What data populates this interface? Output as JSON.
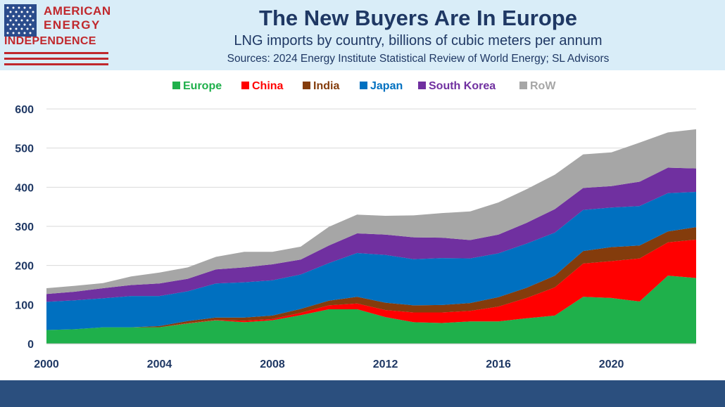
{
  "header": {
    "title": "The New Buyers Are In Europe",
    "subtitle": "LNG imports by country, billions of cubic meters per annum",
    "sources": "Sources: 2024 Energy Institute Statistical Review of World Energy; SL Advisors"
  },
  "logo": {
    "line1": "AMERICAN",
    "line2": "ENERGY",
    "line3": "INDEPENDENCE",
    "flag_icon": "us-flag-icon"
  },
  "chart_data": {
    "type": "area",
    "stacked": true,
    "title": "",
    "xlabel": "",
    "ylabel": "",
    "x": [
      2000,
      2001,
      2002,
      2003,
      2004,
      2005,
      2006,
      2007,
      2008,
      2009,
      2010,
      2011,
      2012,
      2013,
      2014,
      2015,
      2016,
      2017,
      2018,
      2019,
      2020,
      2021,
      2022,
      2023
    ],
    "xticks": [
      2000,
      2004,
      2008,
      2012,
      2016,
      2020
    ],
    "xtick_labels": [
      "2000",
      "2004",
      "2008",
      "2012",
      "2016",
      "2020"
    ],
    "yticks": [
      0,
      100,
      200,
      300,
      400,
      500,
      600
    ],
    "ytick_labels": [
      "0",
      "100",
      "200",
      "300",
      "400",
      "500",
      "600"
    ],
    "xlim": [
      2000,
      2023
    ],
    "ylim": [
      0,
      600
    ],
    "grid": true,
    "legend_position": "top",
    "series": [
      {
        "name": "Europe",
        "color": "#1fb04b",
        "values": [
          35,
          37,
          42,
          42,
          42,
          52,
          60,
          55,
          60,
          73,
          88,
          88,
          68,
          55,
          53,
          57,
          57,
          65,
          72,
          120,
          117,
          108,
          174,
          168
        ]
      },
      {
        "name": "China",
        "color": "#ff0000",
        "values": [
          0,
          0,
          0,
          0,
          0,
          1,
          1,
          4,
          3,
          6,
          10,
          15,
          18,
          25,
          27,
          27,
          38,
          52,
          72,
          85,
          94,
          110,
          85,
          98
        ]
      },
      {
        "name": "India",
        "color": "#843c0c",
        "values": [
          0,
          0,
          0,
          0,
          3,
          5,
          6,
          8,
          9,
          10,
          12,
          17,
          19,
          18,
          19,
          20,
          24,
          26,
          30,
          32,
          36,
          33,
          28,
          32
        ]
      },
      {
        "name": "Japan",
        "color": "#0070c0",
        "values": [
          72,
          74,
          74,
          80,
          77,
          76,
          87,
          90,
          90,
          88,
          96,
          112,
          122,
          118,
          120,
          114,
          112,
          113,
          110,
          105,
          101,
          101,
          98,
          90
        ]
      },
      {
        "name": "South Korea",
        "color": "#7030a0",
        "values": [
          20,
          22,
          26,
          28,
          32,
          32,
          36,
          38,
          41,
          38,
          45,
          50,
          52,
          56,
          52,
          47,
          48,
          53,
          60,
          56,
          55,
          62,
          65,
          60
        ]
      },
      {
        "name": "RoW",
        "color": "#a6a6a6",
        "values": [
          15,
          15,
          13,
          22,
          28,
          29,
          32,
          40,
          32,
          33,
          48,
          48,
          48,
          56,
          63,
          73,
          82,
          86,
          88,
          86,
          86,
          100,
          90,
          100
        ]
      }
    ]
  }
}
